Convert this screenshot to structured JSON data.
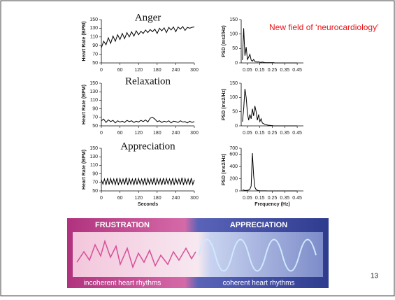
{
  "slide": {
    "headline": "New field of ‘neurocardiology’",
    "page_number": "13",
    "banner": {
      "left_title": "FRUSTRATION",
      "right_title": "APPRECIATION",
      "left_caption": "incoherent heart rhythms",
      "right_caption": "coherent heart rhythms"
    }
  },
  "chart_data": [
    {
      "type": "line",
      "title": "Anger",
      "y_label": "Heart Rate (BPM)",
      "x": [
        0,
        7.5,
        15,
        22.5,
        30,
        37.5,
        45,
        52.5,
        60,
        67.5,
        75,
        82.5,
        90,
        97.5,
        105,
        112.5,
        120,
        127.5,
        135,
        142.5,
        150,
        157.5,
        165,
        172.5,
        180,
        187.5,
        195,
        202.5,
        210,
        217.5,
        225,
        232.5,
        240,
        247.5,
        255,
        262.5,
        270,
        277.5,
        285,
        292.5,
        300
      ],
      "series": [
        {
          "color": "#000000",
          "values": [
            85,
            100,
            92,
            108,
            95,
            112,
            100,
            115,
            104,
            118,
            106,
            120,
            110,
            122,
            112,
            124,
            115,
            123,
            118,
            126,
            120,
            127,
            122,
            128,
            118,
            130,
            124,
            131,
            120,
            132,
            126,
            133,
            122,
            133,
            128,
            134,
            125,
            132,
            130,
            132,
            133
          ]
        }
      ],
      "xlim": [
        0,
        300
      ],
      "ylim": [
        50,
        150
      ],
      "xticks": [
        0,
        60,
        120,
        180,
        240,
        300
      ],
      "yticks": [
        50,
        70,
        90,
        110,
        130,
        150
      ]
    },
    {
      "type": "line",
      "y_label": "PSD (ms2/Hz)",
      "x": [
        0.01,
        0.02,
        0.03,
        0.04,
        0.05,
        0.06,
        0.07,
        0.08,
        0.09,
        0.1,
        0.11,
        0.12,
        0.13,
        0.14,
        0.15,
        0.16,
        0.17,
        0.18,
        0.19,
        0.2,
        0.21,
        0.22,
        0.23,
        0.24,
        0.25,
        0.26,
        0.27,
        0.28,
        0.29,
        0.3,
        0.31,
        0.32,
        0.33,
        0.34,
        0.35,
        0.36,
        0.37,
        0.38,
        0.39,
        0.4,
        0.41,
        0.42,
        0.43,
        0.44,
        0.45
      ],
      "series": [
        {
          "color": "#000000",
          "values": [
            10,
            120,
            25,
            55,
            12,
            20,
            30,
            10,
            6,
            12,
            5,
            4,
            3,
            4,
            2,
            2,
            3,
            2,
            1,
            1,
            1,
            1,
            1,
            1,
            1,
            1,
            0,
            0,
            0,
            0,
            0,
            0,
            0,
            0,
            0,
            0,
            0,
            0,
            0,
            0,
            0,
            0,
            0,
            0,
            0
          ]
        }
      ],
      "xlim": [
        0,
        0.5
      ],
      "ylim": [
        0,
        150
      ],
      "xticks": [
        0.05,
        0.15,
        0.25,
        0.35,
        0.45
      ],
      "yticks": [
        0,
        50,
        100,
        150
      ]
    },
    {
      "type": "line",
      "title": "Relaxation",
      "y_label": "Heart Rate (BPM)",
      "x": [
        0,
        7.5,
        15,
        22.5,
        30,
        37.5,
        45,
        52.5,
        60,
        67.5,
        75,
        82.5,
        90,
        97.5,
        105,
        112.5,
        120,
        127.5,
        135,
        142.5,
        150,
        157.5,
        165,
        172.5,
        180,
        187.5,
        195,
        202.5,
        210,
        217.5,
        225,
        232.5,
        240,
        247.5,
        255,
        262.5,
        270,
        277.5,
        285,
        292.5,
        300
      ],
      "series": [
        {
          "color": "#000000",
          "values": [
            62,
            66,
            58,
            64,
            60,
            63,
            57,
            62,
            59,
            61,
            58,
            63,
            60,
            62,
            58,
            61,
            59,
            63,
            60,
            64,
            59,
            68,
            70,
            66,
            60,
            62,
            58,
            61,
            59,
            62,
            57,
            61,
            60,
            58,
            62,
            59,
            60,
            57,
            61,
            58,
            60
          ]
        }
      ],
      "xlim": [
        0,
        300
      ],
      "ylim": [
        50,
        150
      ],
      "xticks": [
        0,
        60,
        120,
        180,
        240,
        300
      ],
      "yticks": [
        50,
        70,
        90,
        110,
        130,
        150
      ]
    },
    {
      "type": "line",
      "y_label": "PSD (ms2/Hz)",
      "x": [
        0.01,
        0.02,
        0.03,
        0.04,
        0.05,
        0.06,
        0.07,
        0.08,
        0.09,
        0.1,
        0.11,
        0.12,
        0.13,
        0.14,
        0.15,
        0.16,
        0.17,
        0.18,
        0.19,
        0.2,
        0.21,
        0.22,
        0.23,
        0.24,
        0.25,
        0.26,
        0.27,
        0.28,
        0.29,
        0.3,
        0.31,
        0.32,
        0.33,
        0.34,
        0.35,
        0.36,
        0.37,
        0.38,
        0.39,
        0.4,
        0.41,
        0.42,
        0.43,
        0.44,
        0.45
      ],
      "series": [
        {
          "color": "#000000",
          "values": [
            15,
            60,
            130,
            100,
            45,
            20,
            40,
            25,
            60,
            35,
            70,
            50,
            20,
            40,
            15,
            25,
            10,
            8,
            5,
            4,
            3,
            2,
            2,
            1,
            1,
            0,
            0,
            0,
            0,
            0,
            0,
            0,
            0,
            0,
            0,
            0,
            0,
            0,
            0,
            0,
            0,
            0,
            0,
            0,
            0
          ]
        }
      ],
      "xlim": [
        0,
        0.5
      ],
      "ylim": [
        0,
        150
      ],
      "xticks": [
        0.05,
        0.15,
        0.25,
        0.35,
        0.45
      ],
      "yticks": [
        0,
        50,
        100,
        150
      ]
    },
    {
      "type": "line",
      "title": "Appreciation",
      "y_label": "Heart Rate (BPM)",
      "x_label": "Seconds",
      "x": [
        0,
        5,
        10,
        15,
        20,
        25,
        30,
        35,
        40,
        45,
        50,
        55,
        60,
        65,
        70,
        75,
        80,
        85,
        90,
        95,
        100,
        105,
        110,
        115,
        120,
        125,
        130,
        135,
        140,
        145,
        150,
        155,
        160,
        165,
        170,
        175,
        180,
        185,
        190,
        195,
        200,
        205,
        210,
        215,
        220,
        225,
        230,
        235,
        240,
        245,
        250,
        255,
        260,
        265,
        270,
        275,
        280,
        285,
        290,
        295,
        300
      ],
      "series": [
        {
          "color": "#000000",
          "values": [
            76,
            66,
            78,
            64,
            80,
            65,
            79,
            66,
            78,
            65,
            80,
            64,
            79,
            66,
            78,
            65,
            81,
            64,
            79,
            66,
            78,
            64,
            80,
            65,
            79,
            66,
            78,
            65,
            80,
            64,
            79,
            66,
            78,
            65,
            81,
            64,
            79,
            66,
            78,
            64,
            80,
            65,
            79,
            66,
            78,
            65,
            80,
            64,
            79,
            66,
            78,
            65,
            81,
            64,
            79,
            66,
            78,
            64,
            80,
            65,
            76
          ]
        }
      ],
      "xlim": [
        0,
        300
      ],
      "ylim": [
        50,
        150
      ],
      "xticks": [
        0,
        60,
        120,
        180,
        240,
        300
      ],
      "yticks": [
        50,
        70,
        90,
        110,
        130,
        150
      ]
    },
    {
      "type": "line",
      "y_label": "PSD (ms2/Hz)",
      "x_label": "Frequency (Hz)",
      "x": [
        0.01,
        0.02,
        0.03,
        0.04,
        0.05,
        0.06,
        0.07,
        0.08,
        0.09,
        0.1,
        0.11,
        0.12,
        0.13,
        0.14,
        0.15,
        0.16,
        0.17,
        0.18,
        0.19,
        0.2,
        0.21,
        0.22,
        0.23,
        0.24,
        0.25,
        0.26,
        0.27,
        0.28,
        0.29,
        0.3,
        0.31,
        0.32,
        0.33,
        0.34,
        0.35,
        0.36,
        0.37,
        0.38,
        0.39,
        0.4,
        0.41,
        0.42,
        0.43,
        0.44,
        0.45
      ],
      "series": [
        {
          "color": "#000000",
          "values": [
            10,
            15,
            5,
            8,
            10,
            15,
            30,
            80,
            620,
            250,
            60,
            20,
            10,
            5,
            3,
            2,
            1,
            1,
            1,
            1,
            0,
            0,
            0,
            0,
            0,
            0,
            0,
            0,
            0,
            0,
            0,
            0,
            0,
            0,
            0,
            0,
            0,
            0,
            0,
            0,
            0,
            0,
            0,
            0,
            0
          ]
        }
      ],
      "xlim": [
        0,
        0.5
      ],
      "ylim": [
        0,
        700
      ],
      "xticks": [
        0.05,
        0.15,
        0.25,
        0.35,
        0.45
      ],
      "yticks": [
        0,
        200,
        400,
        600,
        700
      ]
    }
  ]
}
